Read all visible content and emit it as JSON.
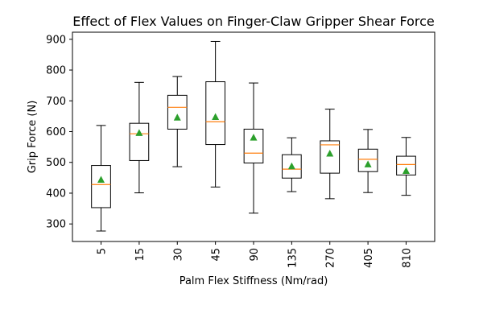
{
  "chart_data": {
    "type": "box",
    "title": "Effect of Flex Values on Finger-Claw Gripper Shear Force",
    "xlabel": "Palm Flex Stiffness (Nm/rad)",
    "ylabel": "Grip Force (N)",
    "ylim": [
      243,
      923
    ],
    "yticks": [
      300,
      400,
      500,
      600,
      700,
      800,
      900
    ],
    "categories": [
      "5",
      "15",
      "30",
      "45",
      "90",
      "135",
      "270",
      "405",
      "810"
    ],
    "boxes": [
      {
        "whislo": 277,
        "q1": 353,
        "median": 428,
        "q3": 490,
        "whishi": 620,
        "mean": 443
      },
      {
        "whislo": 401,
        "q1": 506,
        "median": 593,
        "q3": 627,
        "whishi": 760,
        "mean": 595
      },
      {
        "whislo": 486,
        "q1": 608,
        "median": 679,
        "q3": 718,
        "whishi": 779,
        "mean": 645
      },
      {
        "whislo": 420,
        "q1": 558,
        "median": 632,
        "q3": 762,
        "whishi": 893,
        "mean": 647
      },
      {
        "whislo": 335,
        "q1": 498,
        "median": 530,
        "q3": 608,
        "whishi": 758,
        "mean": 580
      },
      {
        "whislo": 405,
        "q1": 449,
        "median": 478,
        "q3": 525,
        "whishi": 580,
        "mean": 487
      },
      {
        "whislo": 382,
        "q1": 465,
        "median": 557,
        "q3": 570,
        "whishi": 673,
        "mean": 528
      },
      {
        "whislo": 402,
        "q1": 470,
        "median": 510,
        "q3": 543,
        "whishi": 607,
        "mean": 493
      },
      {
        "whislo": 393,
        "q1": 459,
        "median": 493,
        "q3": 520,
        "whishi": 581,
        "mean": 472
      }
    ],
    "grid": false,
    "legend": "none",
    "colors": {
      "box": "#000000",
      "median": "#ff7f0e",
      "mean": "#2ca02c"
    }
  }
}
